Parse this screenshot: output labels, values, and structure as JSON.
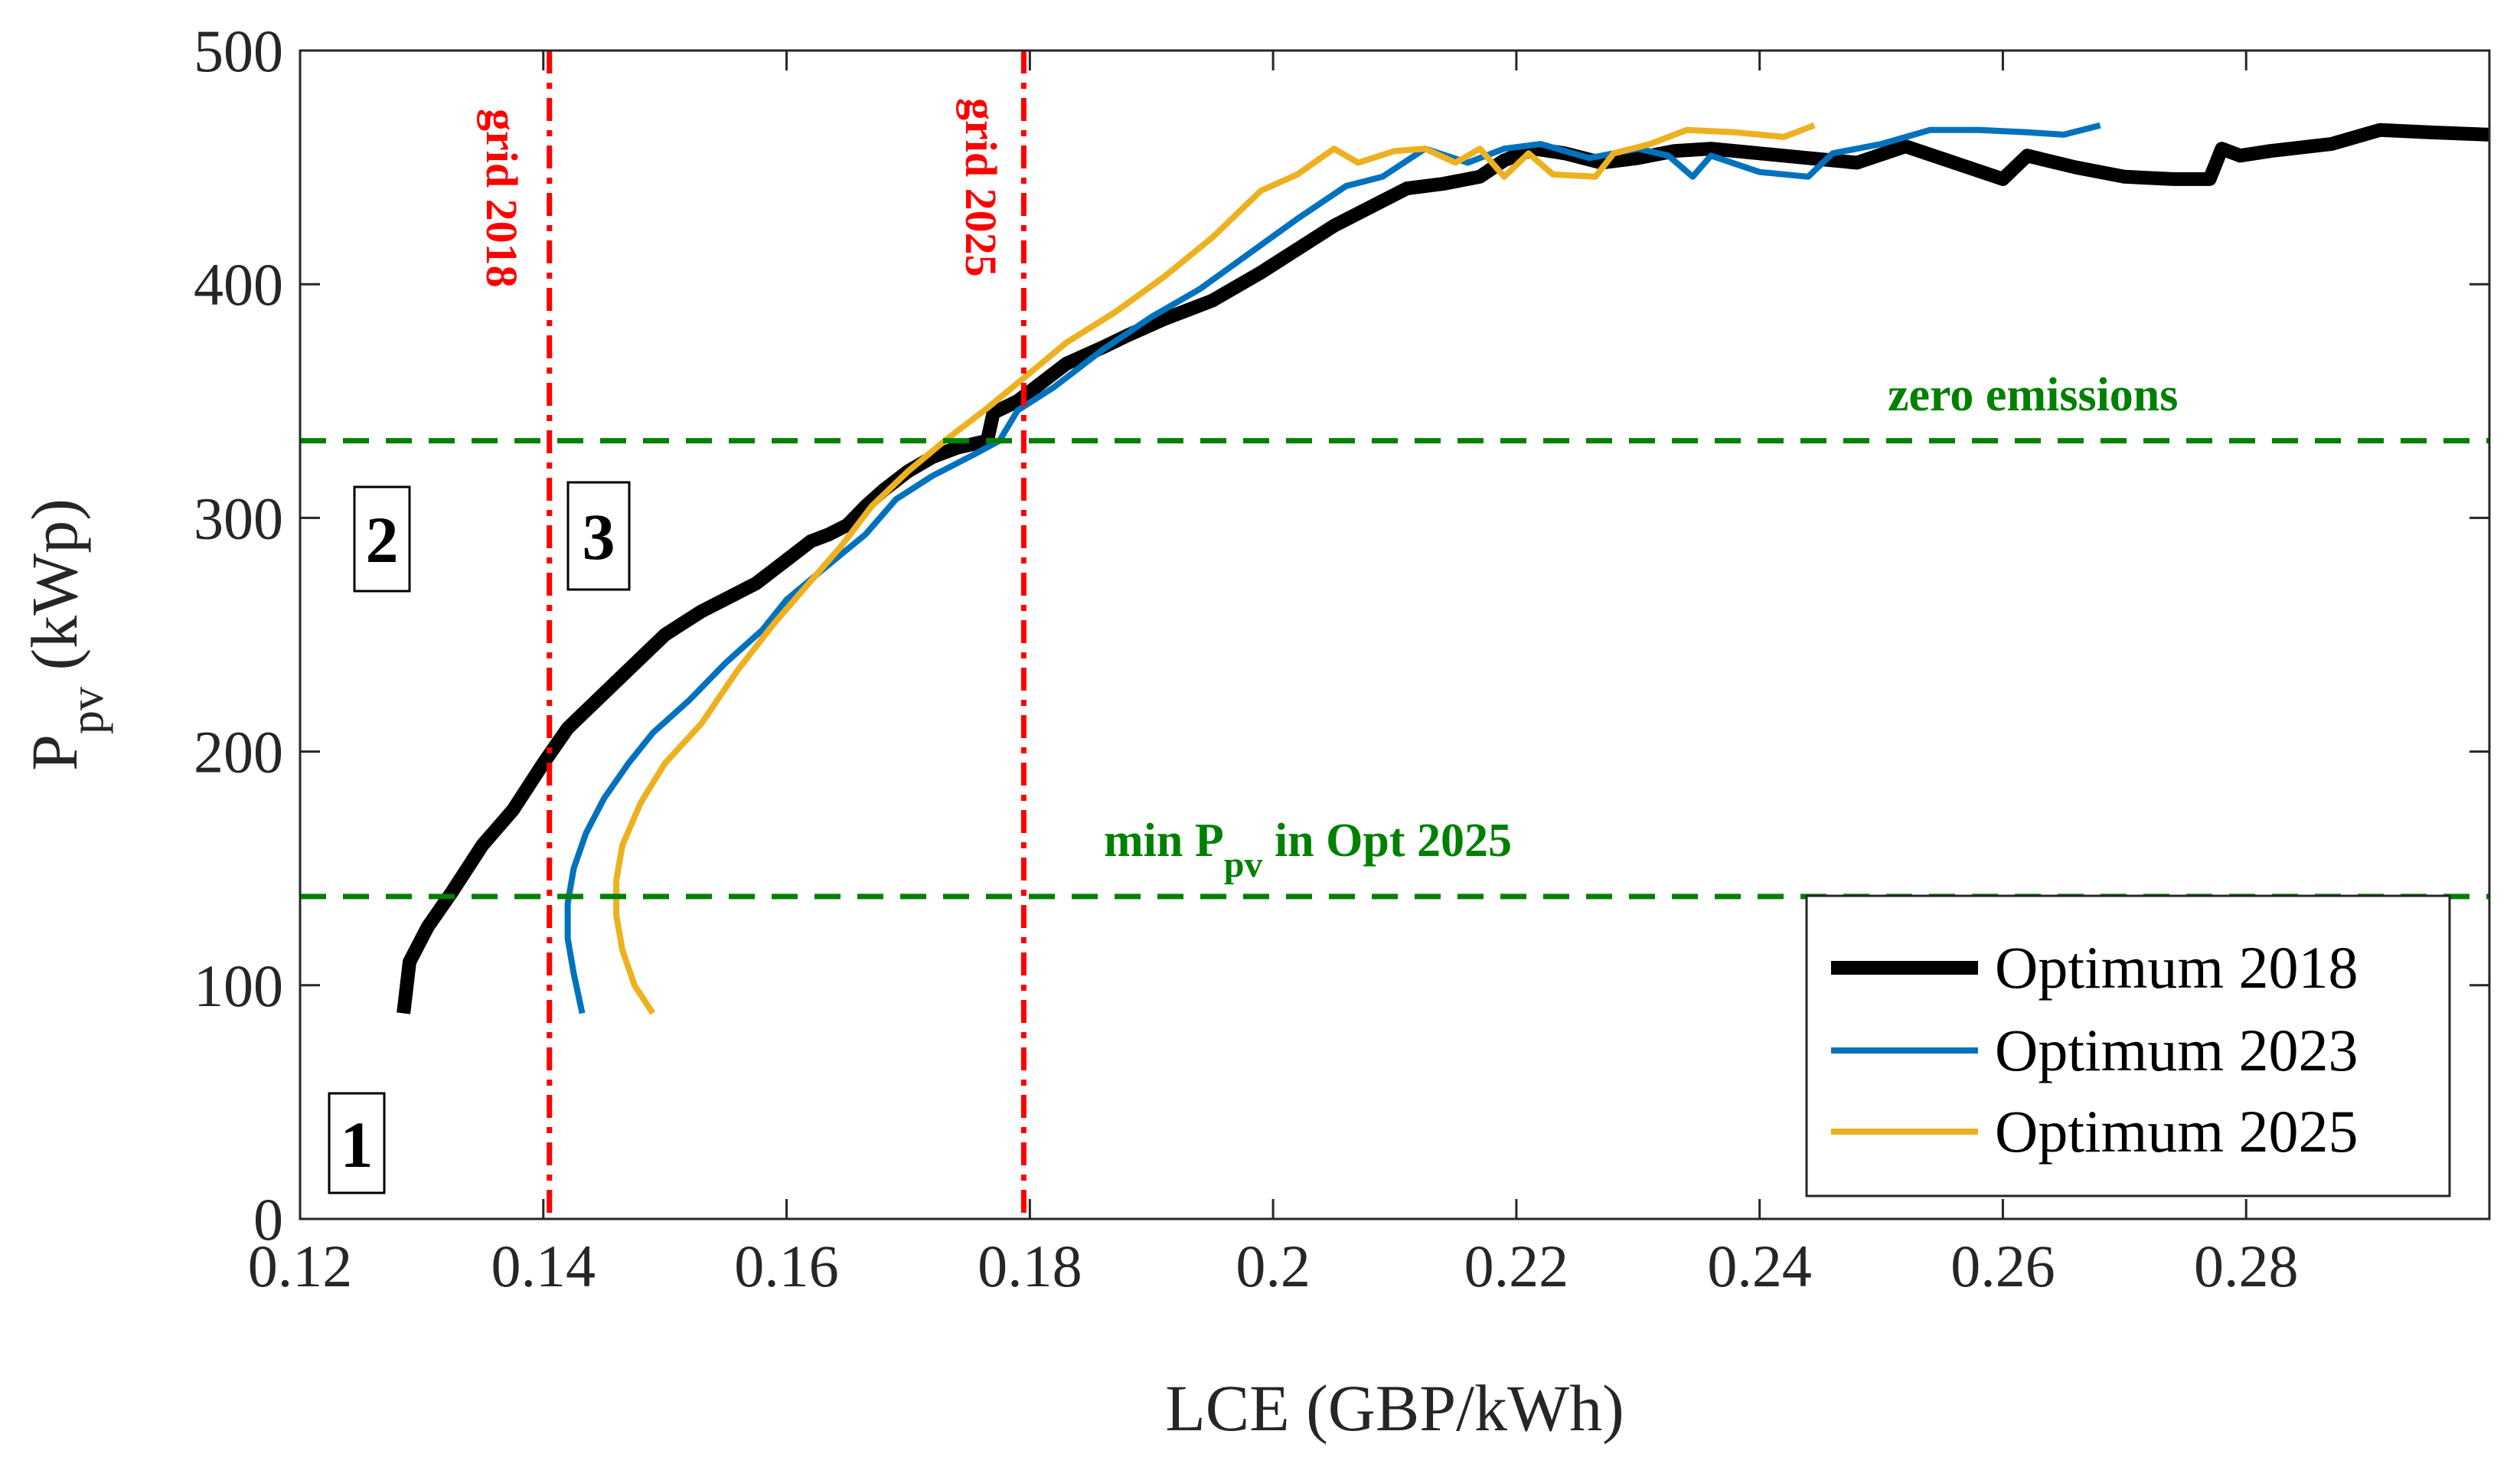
{
  "chart_data": {
    "type": "line",
    "xlabel": "LCE (GBP/kWh)",
    "ylabel": {
      "main": "P",
      "sub": "pv",
      "unit": " (kWp)"
    },
    "xlim": [
      0.12,
      0.3
    ],
    "ylim": [
      0,
      500
    ],
    "x_ticks": [
      0.12,
      0.14,
      0.16,
      0.18,
      0.2,
      0.22,
      0.24,
      0.26,
      0.28
    ],
    "x_tick_labels": [
      "0.12",
      "0.14",
      "0.16",
      "0.18",
      "0.2",
      "0.22",
      "0.24",
      "0.26",
      "0.28"
    ],
    "y_ticks": [
      0,
      100,
      200,
      300,
      400,
      500
    ],
    "y_tick_labels": [
      "0",
      "100",
      "200",
      "300",
      "400",
      "500"
    ],
    "grid": false,
    "legend_position": "bottom-right",
    "series": [
      {
        "name": "Optimum 2018",
        "color": "#000000",
        "weight": "thick",
        "x": [
          0.1285,
          0.129,
          0.1305,
          0.1325,
          0.135,
          0.1375,
          0.14,
          0.142,
          0.144,
          0.147,
          0.15,
          0.153,
          0.156,
          0.1575,
          0.159,
          0.1605,
          0.162,
          0.1635,
          0.165,
          0.1665,
          0.168,
          0.17,
          0.172,
          0.174,
          0.1765,
          0.177,
          0.179,
          0.181,
          0.183,
          0.186,
          0.188,
          0.191,
          0.195,
          0.199,
          0.202,
          0.205,
          0.208,
          0.211,
          0.214,
          0.217,
          0.219,
          0.2215,
          0.224,
          0.227,
          0.23,
          0.233,
          0.236,
          0.24,
          0.244,
          0.248,
          0.252,
          0.256,
          0.26,
          0.262,
          0.266,
          0.27,
          0.274,
          0.277,
          0.278,
          0.2795,
          0.282,
          0.287,
          0.291,
          0.295,
          0.3
        ],
        "y": [
          88,
          110,
          125,
          140,
          160,
          175,
          195,
          210,
          220,
          235,
          250,
          260,
          268,
          272,
          278,
          284,
          290,
          293,
          297,
          305,
          312,
          320,
          326,
          330,
          333,
          345,
          350,
          358,
          366,
          373,
          378,
          385,
          393,
          405,
          415,
          425,
          433,
          441,
          443,
          446,
          453,
          458,
          456,
          452,
          454,
          457,
          458,
          456,
          454,
          452,
          459,
          452,
          445,
          455,
          450,
          446,
          445,
          445,
          458,
          455,
          457,
          460,
          466,
          465,
          464
        ]
      },
      {
        "name": "Optimum 2023",
        "color": "#0072bd",
        "weight": "thin",
        "x": [
          0.1432,
          0.1425,
          0.142,
          0.142,
          0.1425,
          0.1435,
          0.145,
          0.147,
          0.149,
          0.152,
          0.155,
          0.158,
          0.16,
          0.163,
          0.1665,
          0.169,
          0.172,
          0.175,
          0.1775,
          0.179,
          0.182,
          0.186,
          0.19,
          0.194,
          0.198,
          0.202,
          0.206,
          0.209,
          0.2125,
          0.216,
          0.219,
          0.222,
          0.226,
          0.23,
          0.2325,
          0.2345,
          0.236,
          0.24,
          0.244,
          0.246,
          0.25,
          0.254,
          0.258,
          0.262,
          0.265,
          0.268
        ],
        "y": [
          88,
          105,
          120,
          135,
          150,
          165,
          180,
          195,
          208,
          222,
          238,
          252,
          265,
          278,
          293,
          308,
          318,
          326,
          333,
          346,
          356,
          372,
          386,
          398,
          413,
          428,
          442,
          446,
          458,
          452,
          458,
          460,
          454,
          458,
          455,
          446,
          455,
          448,
          446,
          456,
          460,
          466,
          466,
          465,
          464,
          468
        ]
      },
      {
        "name": "Optimum 2025",
        "color": "#edb120",
        "weight": "thin",
        "x": [
          0.149,
          0.1475,
          0.1465,
          0.146,
          0.146,
          0.1465,
          0.148,
          0.15,
          0.153,
          0.156,
          0.159,
          0.162,
          0.1645,
          0.167,
          0.17,
          0.173,
          0.1765,
          0.18,
          0.183,
          0.187,
          0.191,
          0.195,
          0.199,
          0.202,
          0.205,
          0.207,
          0.21,
          0.2125,
          0.215,
          0.217,
          0.219,
          0.221,
          0.223,
          0.2265,
          0.228,
          0.231,
          0.234,
          0.238,
          0.242,
          0.2445
        ],
        "y": [
          88,
          100,
          115,
          130,
          145,
          160,
          178,
          195,
          212,
          235,
          255,
          273,
          288,
          305,
          320,
          333,
          347,
          362,
          375,
          388,
          403,
          420,
          440,
          447,
          458,
          452,
          457,
          458,
          452,
          458,
          446,
          456,
          447,
          446,
          456,
          460,
          466,
          465,
          463,
          468
        ]
      }
    ],
    "vertical_lines": [
      {
        "x": 0.1405,
        "label": "grid 2018",
        "color": "#ff0000"
      },
      {
        "x": 0.1795,
        "label": "grid 2025",
        "color": "#ff0000"
      }
    ],
    "horizontal_lines": [
      {
        "y": 333,
        "color": "#008000",
        "label": "zero emissions"
      },
      {
        "y": 138,
        "color": "#008000",
        "label_main": "min P",
        "label_sub": "pv",
        "label_rest": " in Opt 2025"
      }
    ],
    "region_labels": [
      "1",
      "2",
      "3"
    ]
  }
}
